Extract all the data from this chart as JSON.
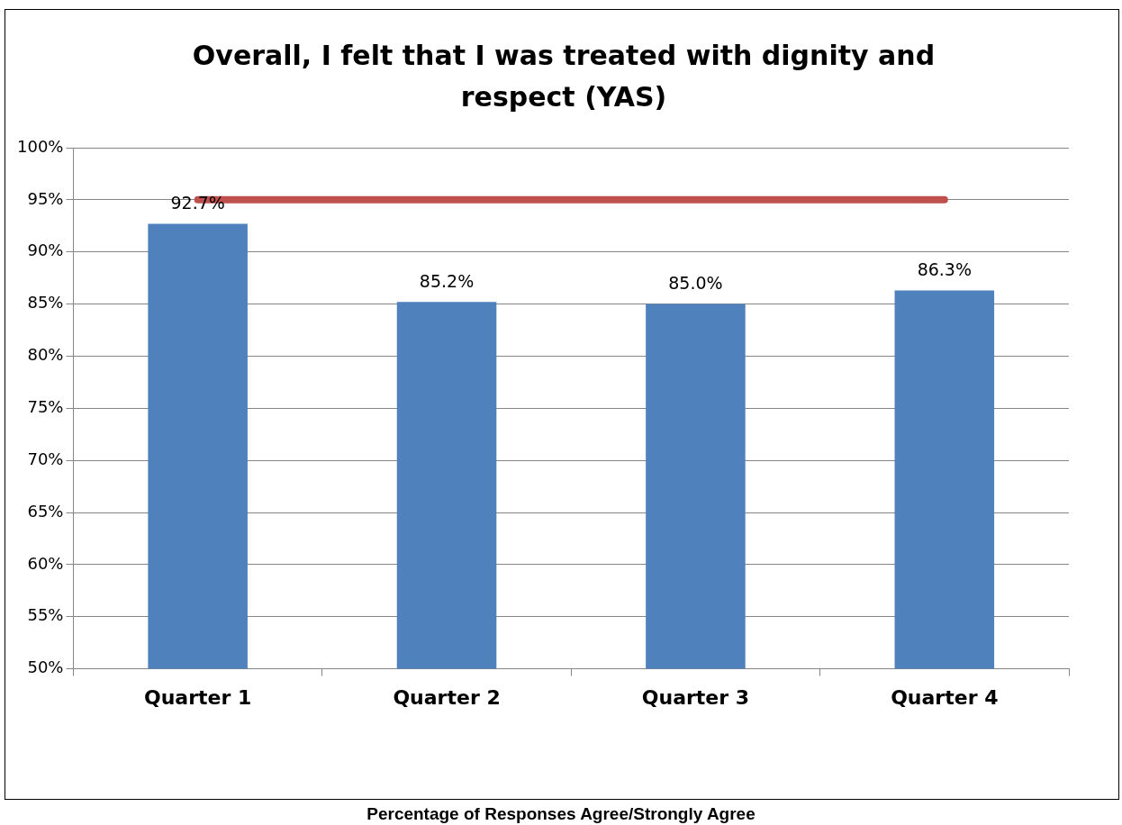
{
  "chart_data": {
    "type": "bar",
    "title": "Overall, I felt that I was treated with dignity and respect (YAS)",
    "categories": [
      "Quarter 1",
      "Quarter 2",
      "Quarter 3",
      "Quarter 4"
    ],
    "series": [
      {
        "color": "#4f81bd",
        "values": [
          92.7,
          85.2,
          85.0,
          86.3
        ],
        "value_labels": [
          "92.7%",
          "85.2%",
          "85.0%",
          "86.3%"
        ]
      },
      {
        "type": "line",
        "color": "#c0504d",
        "values": [
          95,
          95,
          95,
          95
        ],
        "marker": "none",
        "line_style": "solid"
      }
    ],
    "ylim": [
      50,
      100
    ],
    "yticks": [
      {
        "value": 50,
        "label": "50%"
      },
      {
        "value": 55,
        "label": "55%"
      },
      {
        "value": 60,
        "label": "60%"
      },
      {
        "value": 65,
        "label": "65%"
      },
      {
        "value": 70,
        "label": "70%"
      },
      {
        "value": 75,
        "label": "75%"
      },
      {
        "value": 80,
        "label": "80%"
      },
      {
        "value": 85,
        "label": "85%"
      },
      {
        "value": 90,
        "label": "90%"
      },
      {
        "value": 95,
        "label": "95%"
      },
      {
        "value": 100,
        "label": "100%"
      }
    ],
    "grid": "y",
    "legend": false,
    "annotations": [
      "Percentage of Responses Agree/Strongly Agree"
    ]
  }
}
